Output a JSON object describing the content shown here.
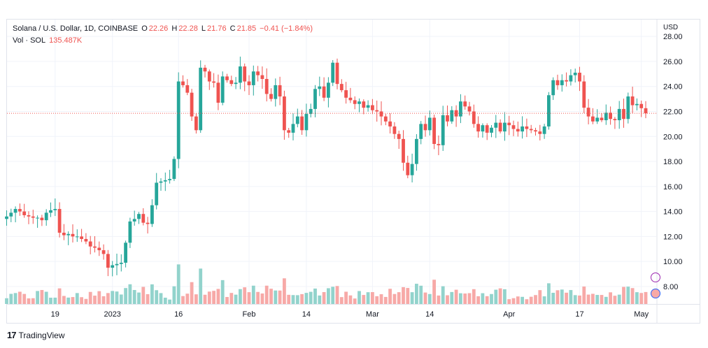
{
  "symbol_title": "Solana / U.S. Dollar, 1D, COINBASE",
  "ohlc": {
    "open_label": "O",
    "open": "22.26",
    "high_label": "H",
    "high": "22.28",
    "low_label": "L",
    "low": "21.76",
    "close_label": "C",
    "close": "21.85",
    "change": "−0.41 (−1.84%)"
  },
  "volume": {
    "label": "Vol · SOL",
    "value": "135.487K"
  },
  "currency": "USD",
  "brand": "TradingView",
  "colors": {
    "up": "#26a69a",
    "down": "#ef5350",
    "vol_up": "#92d3cc",
    "vol_down": "#f7a9a7",
    "grid": "#f0f3fa",
    "price_line": "#ef5350"
  },
  "chart_data": {
    "type": "candlestick",
    "ylim": [
      6.6,
      28.4
    ],
    "y_ticks": [
      "8.00",
      "10.00",
      "12.00",
      "14.00",
      "16.00",
      "18.00",
      "20.00",
      "22.00",
      "24.00",
      "26.00",
      "28.00"
    ],
    "x_ticks": [
      {
        "label": "19",
        "day": 11
      },
      {
        "label": "2023",
        "day": 24
      },
      {
        "label": "16",
        "day": 39
      },
      {
        "label": "Feb",
        "day": 55
      },
      {
        "label": "14",
        "day": 68
      },
      {
        "label": "Mar",
        "day": 83
      },
      {
        "label": "14",
        "day": 96
      },
      {
        "label": "Apr",
        "day": 114
      },
      {
        "label": "17",
        "day": 130
      },
      {
        "label": "May",
        "day": 144
      }
    ],
    "last_close": 21.85,
    "close": [
      13.6,
      13.9,
      14.2,
      14.0,
      13.7,
      13.6,
      13.5,
      13.5,
      13.3,
      13.9,
      14.1,
      14.2,
      12.3,
      12.1,
      12.2,
      12.0,
      12.0,
      11.8,
      11.6,
      11.2,
      11.1,
      10.9,
      10.6,
      9.5,
      9.7,
      9.8,
      9.9,
      11.5,
      13.2,
      13.4,
      13.8,
      13.1,
      13.0,
      14.5,
      16.3,
      16.4,
      16.5,
      16.6,
      18.2,
      24.4,
      24.1,
      23.5,
      21.6,
      20.5,
      25.5,
      25.2,
      24.4,
      24.3,
      22.7,
      24.8,
      24.5,
      24.2,
      24.3,
      25.6,
      24.4,
      24.1,
      25.2,
      24.9,
      24.6,
      23.4,
      23.0,
      24.1,
      23.2,
      20.5,
      20.3,
      21.0,
      21.6,
      20.5,
      21.8,
      22.2,
      23.8,
      24.0,
      23.1,
      24.3,
      25.9,
      24.2,
      23.7,
      23.1,
      22.9,
      22.6,
      22.8,
      22.3,
      22.5,
      22.1,
      22.0,
      21.6,
      21.2,
      20.8,
      20.2,
      19.8,
      17.9,
      16.9,
      17.8,
      19.8,
      21.0,
      20.5,
      21.5,
      19.4,
      19.3,
      21.7,
      21.2,
      22.1,
      21.6,
      22.8,
      22.4,
      22.0,
      21.0,
      20.4,
      20.9,
      20.3,
      20.7,
      21.1,
      20.4,
      21.1,
      20.9,
      20.6,
      20.4,
      20.8,
      20.6,
      20.5,
      20.4,
      20.2,
      20.8,
      23.3,
      24.5,
      24.1,
      24.5,
      24.4,
      24.9,
      25.1,
      24.4,
      22.3,
      21.6,
      21.2,
      21.5,
      21.3,
      21.9,
      21.4,
      21.3,
      22.2,
      21.4,
      23.2,
      22.5,
      22.6,
      22.26,
      21.85
    ]
  }
}
